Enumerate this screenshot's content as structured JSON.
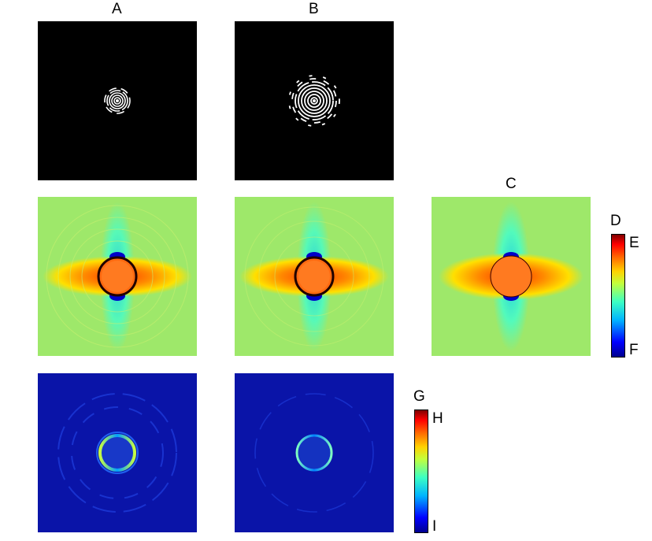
{
  "column_labels": {
    "a": "A",
    "b": "B",
    "c": "C"
  },
  "colorbar_top": {
    "title": "D",
    "max_label": "E",
    "min_label": "F"
  },
  "colorbar_bottom": {
    "title": "G",
    "max_label": "H",
    "min_label": "I"
  },
  "colors": {
    "mask_bg": "#000000",
    "mask_fg": "#ffffff",
    "field_bg": "#9ee86a",
    "error_bg": "#0a14a8"
  }
}
